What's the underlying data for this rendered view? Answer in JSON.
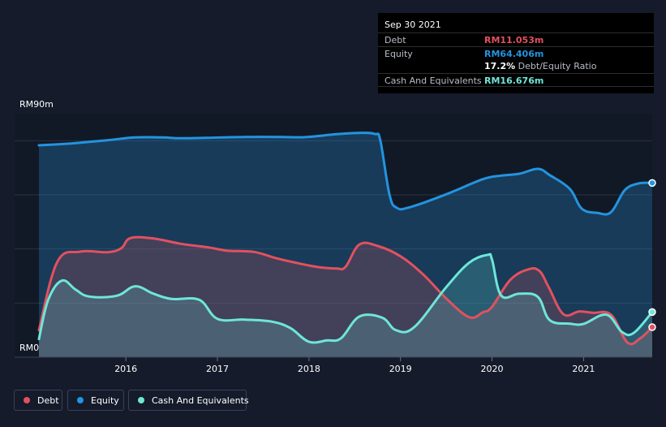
{
  "tooltip": {
    "date": "Sep 30 2021",
    "debt_label": "Debt",
    "debt_value": "RM11.053m",
    "equity_label": "Equity",
    "equity_value": "RM64.406m",
    "ratio_value": "17.2%",
    "ratio_label": "Debt/Equity Ratio",
    "cash_label": "Cash And Equivalents",
    "cash_value": "RM16.676m"
  },
  "legend": {
    "debt": "Debt",
    "equity": "Equity",
    "cash": "Cash And Equivalents"
  },
  "colors": {
    "debt": "#e2515f",
    "equity": "#2394df",
    "cash": "#6ee6d8",
    "background": "#151b2a"
  },
  "chart_data": {
    "type": "area",
    "y_unit_labels": {
      "top": "RM90m",
      "bottom": "RM0"
    },
    "ylim": [
      0,
      90
    ],
    "xlim": [
      2015.05,
      2021.75
    ],
    "x_ticks": [
      2016,
      2017,
      2018,
      2019,
      2020,
      2021
    ],
    "x_tick_labels": [
      "2016",
      "2017",
      "2018",
      "2019",
      "2020",
      "2021"
    ],
    "series": [
      {
        "name": "Equity",
        "key": "equity",
        "points": [
          [
            2015.05,
            78.3
          ],
          [
            2015.4,
            79.0
          ],
          [
            2015.8,
            80.2
          ],
          [
            2016.1,
            81.2
          ],
          [
            2016.4,
            81.2
          ],
          [
            2016.6,
            80.9
          ],
          [
            2016.9,
            81.1
          ],
          [
            2017.3,
            81.4
          ],
          [
            2017.7,
            81.4
          ],
          [
            2017.95,
            81.3
          ],
          [
            2018.3,
            82.4
          ],
          [
            2018.55,
            82.9
          ],
          [
            2018.72,
            82.5
          ],
          [
            2018.78,
            80.0
          ],
          [
            2018.88,
            60.0
          ],
          [
            2018.96,
            55.2
          ],
          [
            2019.1,
            55.4
          ],
          [
            2019.5,
            60.2
          ],
          [
            2019.9,
            65.8
          ],
          [
            2020.1,
            67.1
          ],
          [
            2020.3,
            67.8
          ],
          [
            2020.5,
            69.6
          ],
          [
            2020.63,
            67.3
          ],
          [
            2020.85,
            62.2
          ],
          [
            2020.98,
            54.9
          ],
          [
            2021.15,
            53.3
          ],
          [
            2021.3,
            53.6
          ],
          [
            2021.45,
            61.7
          ],
          [
            2021.6,
            64.2
          ],
          [
            2021.75,
            64.4
          ]
        ]
      },
      {
        "name": "Debt",
        "key": "debt",
        "points": [
          [
            2015.05,
            10.0
          ],
          [
            2015.25,
            35.2
          ],
          [
            2015.5,
            39.0
          ],
          [
            2015.8,
            38.8
          ],
          [
            2015.95,
            40.3
          ],
          [
            2016.05,
            44.0
          ],
          [
            2016.3,
            43.9
          ],
          [
            2016.6,
            41.9
          ],
          [
            2016.9,
            40.6
          ],
          [
            2017.1,
            39.4
          ],
          [
            2017.4,
            38.9
          ],
          [
            2017.65,
            36.5
          ],
          [
            2017.9,
            34.6
          ],
          [
            2018.1,
            33.3
          ],
          [
            2018.3,
            32.8
          ],
          [
            2018.4,
            33.4
          ],
          [
            2018.55,
            41.6
          ],
          [
            2018.75,
            41.1
          ],
          [
            2019.0,
            37.3
          ],
          [
            2019.25,
            30.5
          ],
          [
            2019.5,
            21.7
          ],
          [
            2019.75,
            14.8
          ],
          [
            2019.9,
            16.6
          ],
          [
            2020.0,
            18.6
          ],
          [
            2020.2,
            28.6
          ],
          [
            2020.4,
            32.5
          ],
          [
            2020.52,
            31.8
          ],
          [
            2020.62,
            25.8
          ],
          [
            2020.78,
            15.9
          ],
          [
            2020.95,
            16.9
          ],
          [
            2021.1,
            16.4
          ],
          [
            2021.3,
            15.7
          ],
          [
            2021.48,
            5.4
          ],
          [
            2021.62,
            7.0
          ],
          [
            2021.75,
            11.1
          ]
        ]
      },
      {
        "name": "Cash And Equivalents",
        "key": "cash",
        "points": [
          [
            2015.05,
            6.7
          ],
          [
            2015.15,
            21.1
          ],
          [
            2015.3,
            28.3
          ],
          [
            2015.45,
            25.0
          ],
          [
            2015.6,
            22.4
          ],
          [
            2015.9,
            22.7
          ],
          [
            2016.1,
            26.2
          ],
          [
            2016.3,
            23.5
          ],
          [
            2016.5,
            21.5
          ],
          [
            2016.8,
            21.2
          ],
          [
            2017.0,
            14.2
          ],
          [
            2017.3,
            13.9
          ],
          [
            2017.6,
            13.1
          ],
          [
            2017.8,
            10.7
          ],
          [
            2018.0,
            5.7
          ],
          [
            2018.2,
            6.2
          ],
          [
            2018.35,
            7.0
          ],
          [
            2018.55,
            15.0
          ],
          [
            2018.8,
            14.6
          ],
          [
            2018.95,
            10.0
          ],
          [
            2019.15,
            11.1
          ],
          [
            2019.5,
            25.9
          ],
          [
            2019.75,
            34.9
          ],
          [
            2019.95,
            37.8
          ],
          [
            2020.0,
            36.1
          ],
          [
            2020.1,
            22.8
          ],
          [
            2020.3,
            23.5
          ],
          [
            2020.5,
            22.3
          ],
          [
            2020.63,
            13.7
          ],
          [
            2020.85,
            12.4
          ],
          [
            2021.0,
            12.3
          ],
          [
            2021.25,
            15.7
          ],
          [
            2021.42,
            9.3
          ],
          [
            2021.55,
            9.0
          ],
          [
            2021.75,
            16.7
          ]
        ]
      }
    ]
  }
}
